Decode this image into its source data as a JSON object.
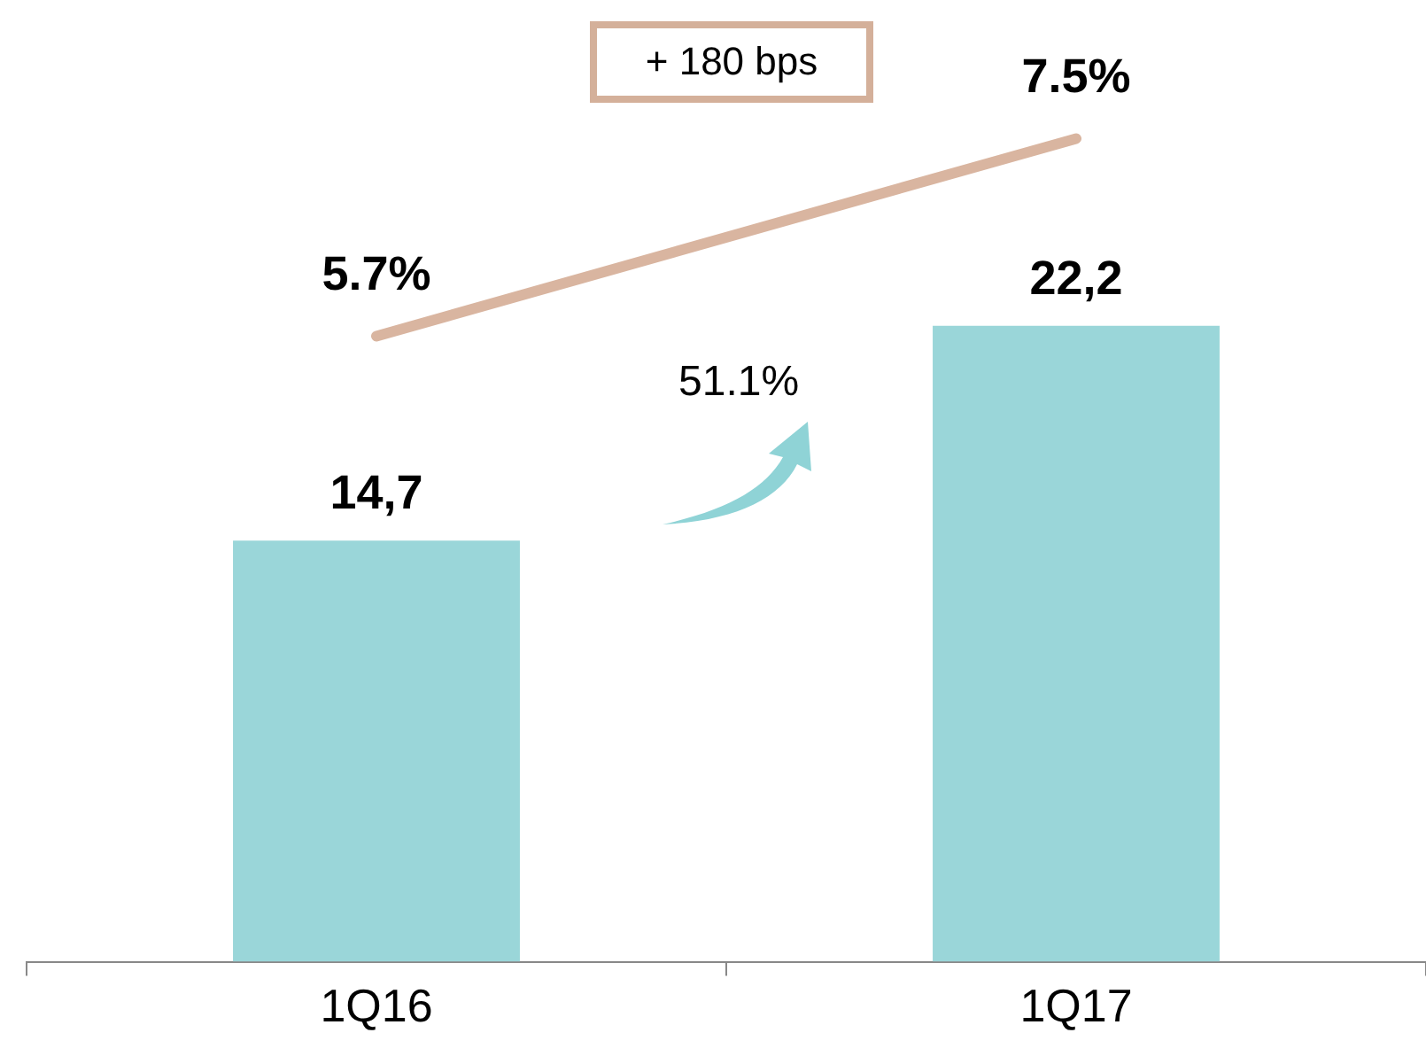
{
  "chart_data": {
    "type": "bar",
    "categories": [
      "1Q16",
      "1Q17"
    ],
    "series": [
      {
        "color": "#9ad6d9",
        "values": [
          14.7,
          22.2
        ],
        "value_labels": [
          "14,7",
          "22,2"
        ]
      },
      {
        "type": "line",
        "axis": "y2",
        "color": "#d9b5a0",
        "values": [
          5.7,
          7.5
        ],
        "value_labels": [
          "5.7%",
          "7.5%"
        ]
      }
    ],
    "tick_labels": "x",
    "grid": false,
    "legend": false,
    "marker": "none",
    "line_style": "solid",
    "annotations": [
      "+ 180 bps",
      "51.1%"
    ]
  }
}
